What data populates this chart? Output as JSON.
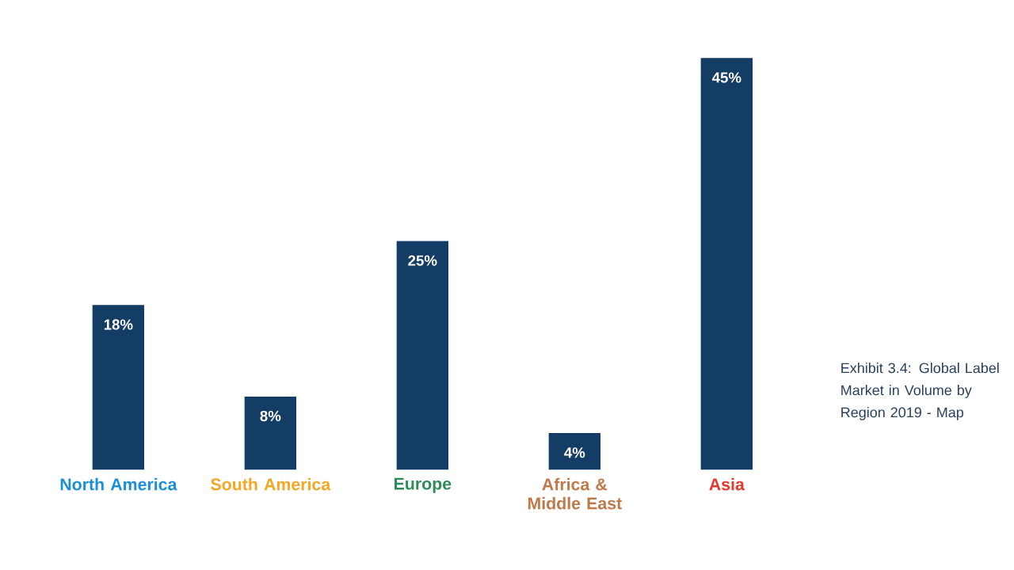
{
  "chart_data": {
    "type": "bar",
    "title": "Exhibit 3.4: Global Label Market in Volume by Region 2019 - Map",
    "categories": [
      "North America",
      "South America",
      "Europe",
      "Africa & Middle East",
      "Asia"
    ],
    "values": [
      18,
      8,
      25,
      4,
      45
    ],
    "value_labels": [
      "18%",
      "8%",
      "25%",
      "4%",
      "45%"
    ],
    "color": "#143d66",
    "tick_labels": "x"
  }
}
